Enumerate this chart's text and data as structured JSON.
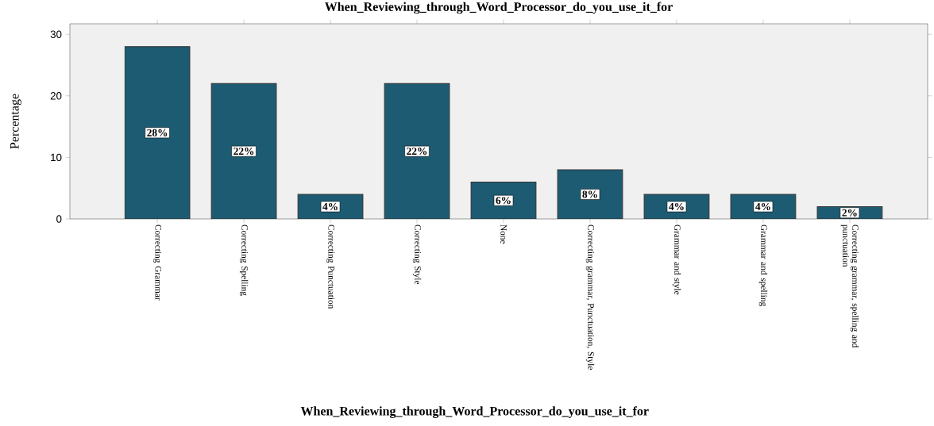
{
  "chart_data": {
    "type": "bar",
    "title": "When_Reviewing_through_Word_Processor_do_you_use_it_for",
    "xlabel": "When_Reviewing_through_Word_Processor_do_you_use_it_for",
    "ylabel": "Percentage",
    "categories": [
      "Correcting Grammar",
      "Correcting Spelling",
      "Correcting Punctuation",
      "Correcting Style",
      "None",
      "Correcting grammar, Punctuation, Style",
      "Grammar and style",
      "Grammar and spelling",
      "Correcting grammar, spelling and punctuation"
    ],
    "values": [
      28,
      22,
      4,
      22,
      6,
      8,
      4,
      4,
      2
    ],
    "value_labels": [
      "28%",
      "22%",
      "4%",
      "22%",
      "6%",
      "8%",
      "4%",
      "4%",
      "2%"
    ],
    "color": "#1d5b73",
    "ylim": [
      0,
      31.7
    ],
    "yticks": [
      0,
      10,
      20,
      30
    ]
  }
}
